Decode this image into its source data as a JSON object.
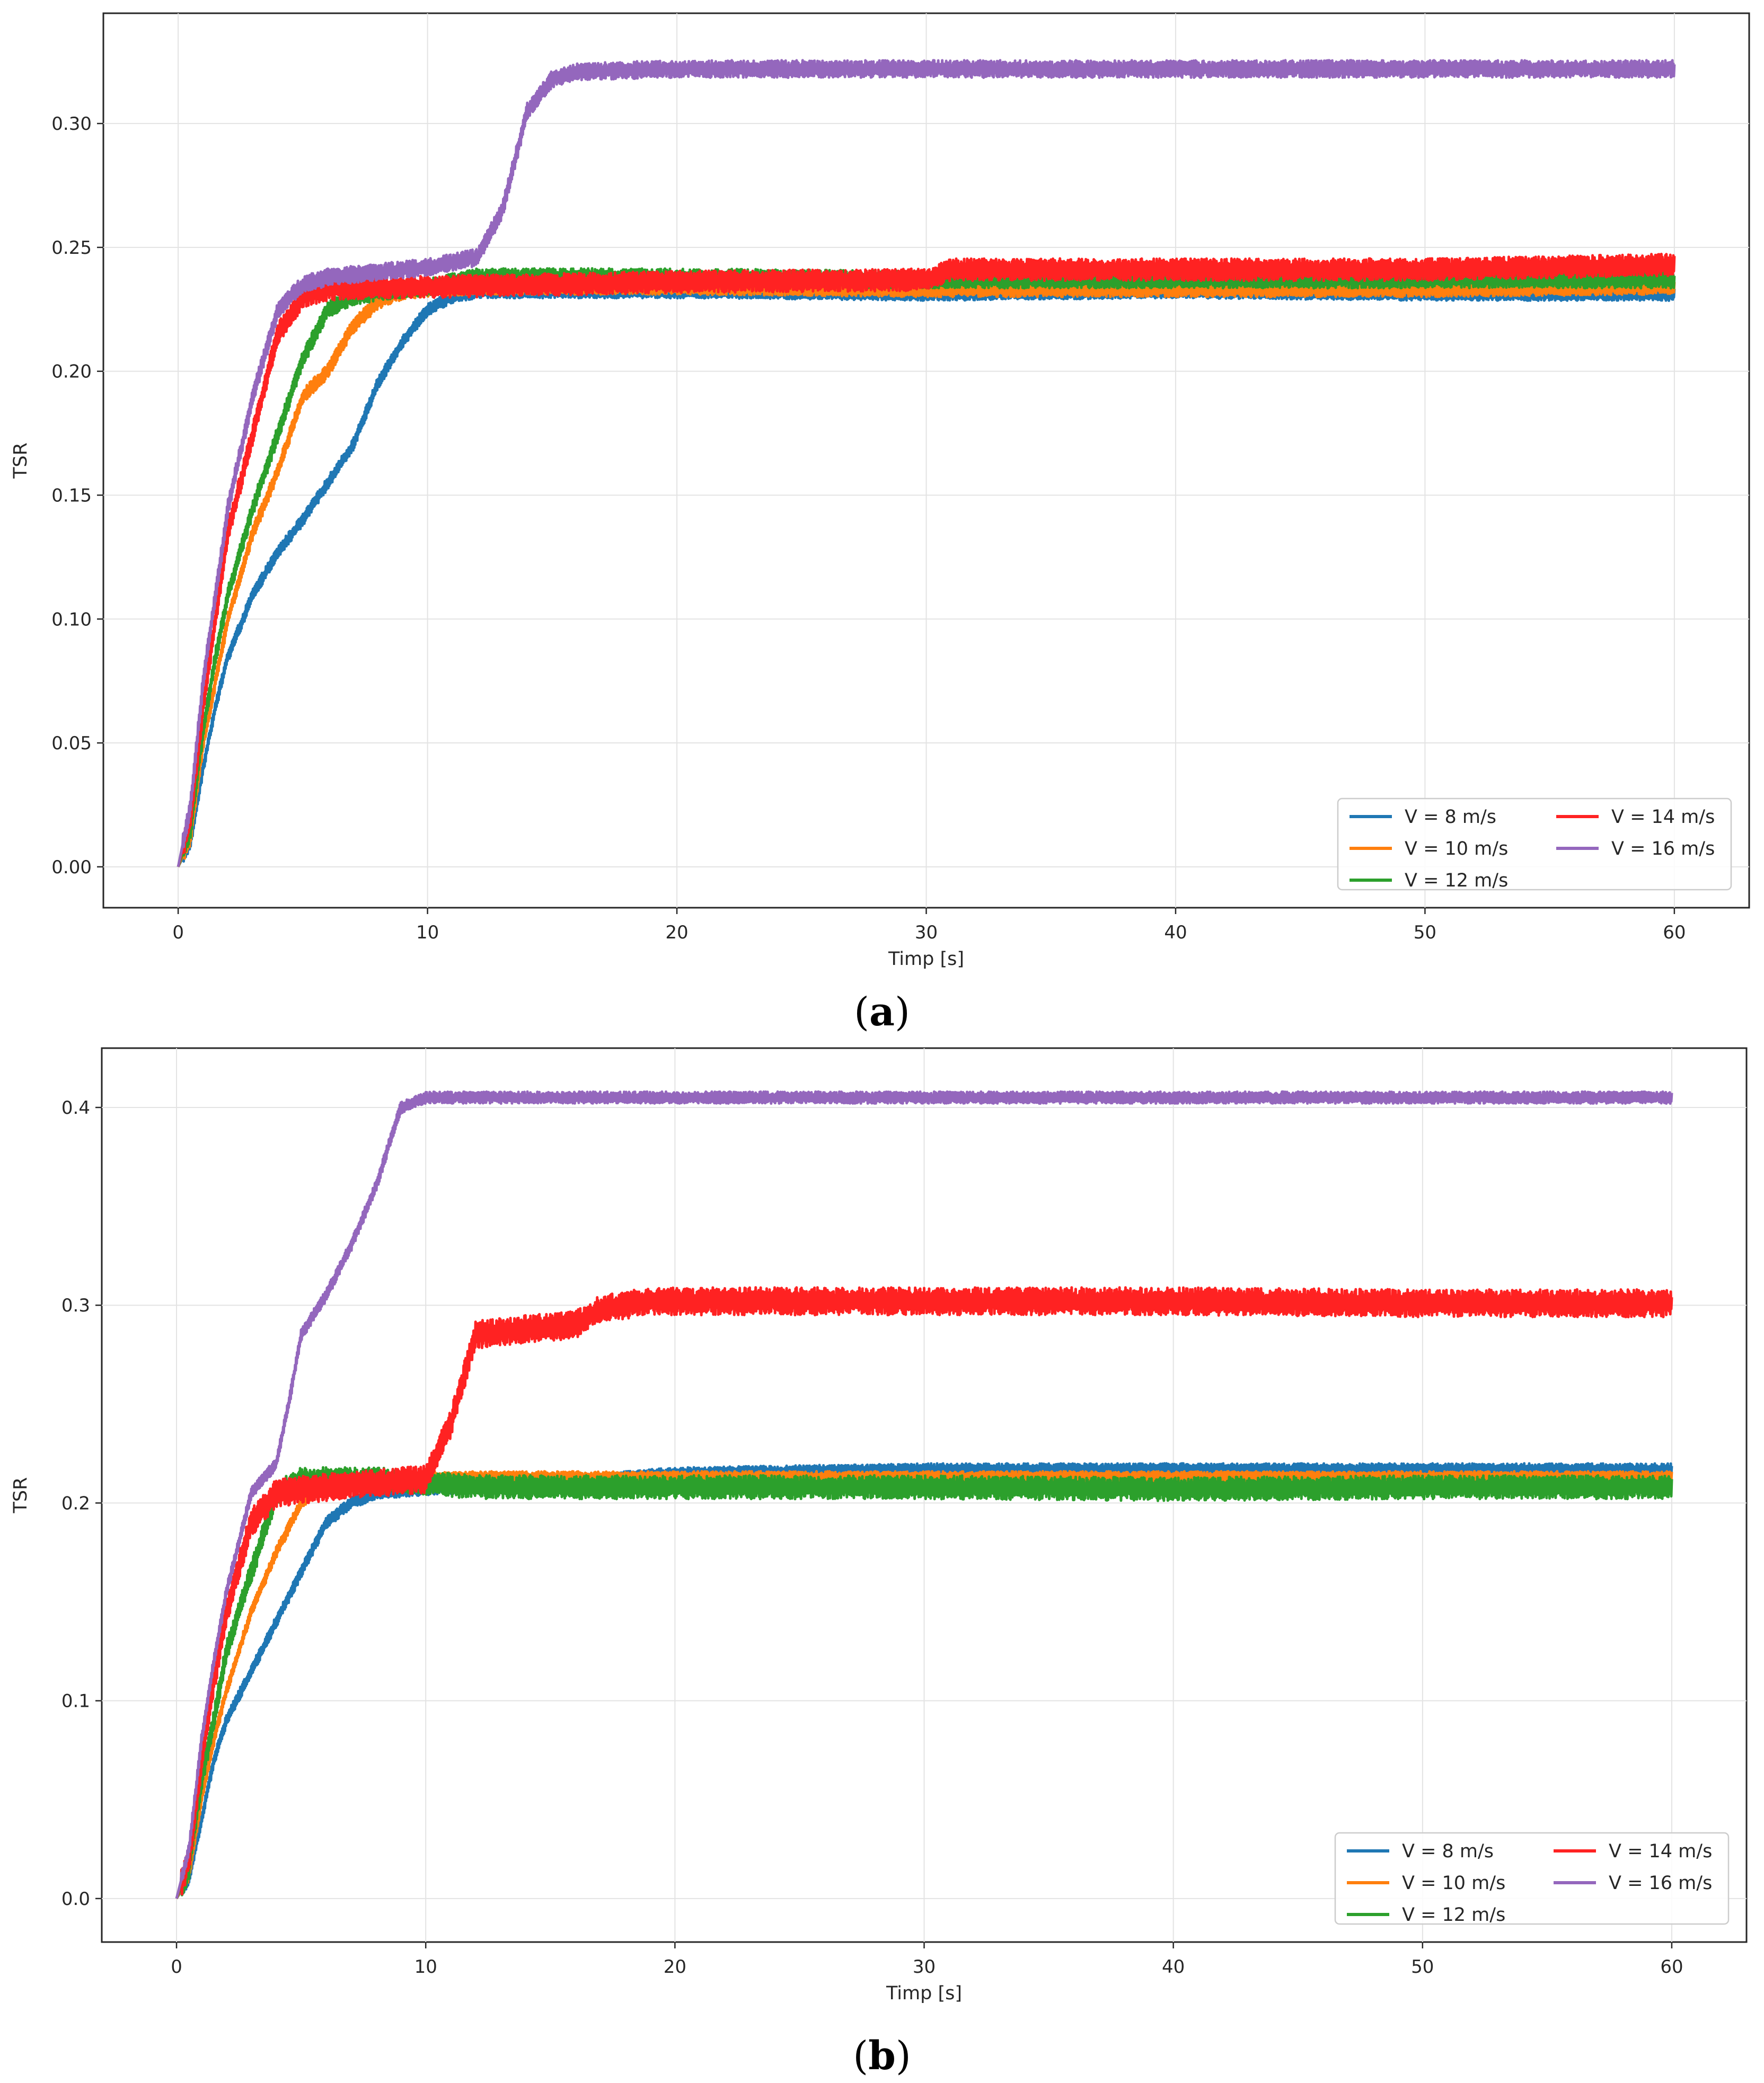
{
  "chart_data": [
    {
      "id": "a",
      "type": "line",
      "caption": {
        "open": "(",
        "letter": "a",
        "close": ")"
      },
      "xlabel": "Timp [s]",
      "ylabel": "TSR",
      "xlim": [
        -3,
        63
      ],
      "ylim": [
        -0.0165,
        0.3445
      ],
      "xticks": [
        0,
        10,
        20,
        30,
        40,
        50,
        60
      ],
      "xtick_labels": [
        "0",
        "10",
        "20",
        "30",
        "40",
        "50",
        "60"
      ],
      "yticks": [
        0.0,
        0.05,
        0.1,
        0.15,
        0.2,
        0.25,
        0.3
      ],
      "ytick_labels": [
        "0.00",
        "0.05",
        "0.10",
        "0.15",
        "0.20",
        "0.25",
        "0.30"
      ],
      "grid": true,
      "legend_position": "lower-right",
      "legend_columns": 2,
      "series": [
        {
          "name": "V = 8 m/s",
          "label": "V = 8 m/s",
          "color": "#1f77b4",
          "noise": 0.0025,
          "points": [
            [
              0,
              0
            ],
            [
              0.5,
              0.01
            ],
            [
              1,
              0.04
            ],
            [
              1.5,
              0.065
            ],
            [
              2,
              0.085
            ],
            [
              3,
              0.11
            ],
            [
              4,
              0.127
            ],
            [
              5,
              0.14
            ],
            [
              6,
              0.155
            ],
            [
              7,
              0.17
            ],
            [
              8,
              0.195
            ],
            [
              9,
              0.212
            ],
            [
              10,
              0.225
            ],
            [
              11,
              0.23
            ],
            [
              12,
              0.232
            ],
            [
              20,
              0.232
            ],
            [
              30,
              0.231
            ],
            [
              40,
              0.232
            ],
            [
              50,
              0.231
            ],
            [
              60,
              0.231
            ]
          ]
        },
        {
          "name": "V = 10 m/s",
          "label": "V = 10 m/s",
          "color": "#ff7f0e",
          "noise": 0.003,
          "points": [
            [
              0,
              0
            ],
            [
              0.5,
              0.012
            ],
            [
              1,
              0.05
            ],
            [
              1.5,
              0.075
            ],
            [
              2,
              0.1
            ],
            [
              3,
              0.135
            ],
            [
              4,
              0.16
            ],
            [
              5,
              0.19
            ],
            [
              6,
              0.2
            ],
            [
              7,
              0.218
            ],
            [
              8,
              0.228
            ],
            [
              9,
              0.232
            ],
            [
              10,
              0.233
            ],
            [
              12,
              0.234
            ],
            [
              20,
              0.234
            ],
            [
              30,
              0.233
            ],
            [
              40,
              0.233
            ],
            [
              50,
              0.233
            ],
            [
              60,
              0.234
            ]
          ]
        },
        {
          "name": "V = 12 m/s",
          "label": "V = 12 m/s",
          "color": "#2ca02c",
          "noise": 0.0035,
          "points": [
            [
              0,
              0
            ],
            [
              0.5,
              0.015
            ],
            [
              1,
              0.055
            ],
            [
              1.5,
              0.085
            ],
            [
              2,
              0.11
            ],
            [
              3,
              0.145
            ],
            [
              4,
              0.175
            ],
            [
              5,
              0.205
            ],
            [
              6,
              0.225
            ],
            [
              7,
              0.23
            ],
            [
              8,
              0.232
            ],
            [
              10,
              0.234
            ],
            [
              12,
              0.238
            ],
            [
              20,
              0.238
            ],
            [
              30,
              0.237
            ],
            [
              40,
              0.237
            ],
            [
              50,
              0.237
            ],
            [
              60,
              0.237
            ]
          ]
        },
        {
          "name": "V = 14 m/s",
          "label": "V = 14 m/s",
          "color": "#ff2222",
          "noise": 0.0045,
          "points": [
            [
              0,
              0
            ],
            [
              0.5,
              0.02
            ],
            [
              1,
              0.065
            ],
            [
              1.5,
              0.1
            ],
            [
              2,
              0.135
            ],
            [
              3,
              0.175
            ],
            [
              4,
              0.215
            ],
            [
              5,
              0.23
            ],
            [
              6,
              0.233
            ],
            [
              8,
              0.234
            ],
            [
              10,
              0.234
            ],
            [
              15,
              0.235
            ],
            [
              20,
              0.236
            ],
            [
              30,
              0.237
            ],
            [
              31,
              0.241
            ],
            [
              40,
              0.241
            ],
            [
              50,
              0.241
            ],
            [
              60,
              0.243
            ]
          ]
        },
        {
          "name": "V = 16 m/s",
          "label": "V = 16 m/s",
          "color": "#9467bd",
          "noise": 0.0035,
          "points": [
            [
              0,
              0
            ],
            [
              0.5,
              0.025
            ],
            [
              1,
              0.075
            ],
            [
              1.5,
              0.11
            ],
            [
              2,
              0.145
            ],
            [
              3,
              0.19
            ],
            [
              4,
              0.225
            ],
            [
              5,
              0.235
            ],
            [
              6,
              0.238
            ],
            [
              8,
              0.24
            ],
            [
              10,
              0.242
            ],
            [
              12,
              0.246
            ],
            [
              13,
              0.265
            ],
            [
              14,
              0.305
            ],
            [
              15,
              0.318
            ],
            [
              16,
              0.321
            ],
            [
              20,
              0.322
            ],
            [
              30,
              0.322
            ],
            [
              40,
              0.322
            ],
            [
              50,
              0.322
            ],
            [
              60,
              0.322
            ]
          ]
        }
      ]
    },
    {
      "id": "b",
      "type": "line",
      "caption": {
        "open": "(",
        "letter": "b",
        "close": ")"
      },
      "xlabel": "Timp [s]",
      "ylabel": "TSR",
      "xlim": [
        -3,
        63
      ],
      "ylim": [
        -0.022,
        0.43
      ],
      "xticks": [
        0,
        10,
        20,
        30,
        40,
        50,
        60
      ],
      "xtick_labels": [
        "0",
        "10",
        "20",
        "30",
        "40",
        "50",
        "60"
      ],
      "yticks": [
        0.0,
        0.1,
        0.2,
        0.3,
        0.4
      ],
      "ytick_labels": [
        "0.0",
        "0.1",
        "0.2",
        "0.3",
        "0.4"
      ],
      "grid": true,
      "legend_position": "lower-right",
      "legend_columns": 2,
      "series": [
        {
          "name": "V = 8 m/s",
          "label": "V = 8 m/s",
          "color": "#1f77b4",
          "noise": 0.003,
          "points": [
            [
              0,
              0
            ],
            [
              0.5,
              0.01
            ],
            [
              1,
              0.04
            ],
            [
              1.5,
              0.07
            ],
            [
              2,
              0.09
            ],
            [
              3,
              0.115
            ],
            [
              4,
              0.14
            ],
            [
              5,
              0.165
            ],
            [
              6,
              0.19
            ],
            [
              7,
              0.2
            ],
            [
              8,
              0.205
            ],
            [
              10,
              0.207
            ],
            [
              15,
              0.21
            ],
            [
              20,
              0.215
            ],
            [
              30,
              0.217
            ],
            [
              40,
              0.217
            ],
            [
              50,
              0.217
            ],
            [
              60,
              0.217
            ]
          ]
        },
        {
          "name": "V = 10 m/s",
          "label": "V = 10 m/s",
          "color": "#ff7f0e",
          "noise": 0.003,
          "points": [
            [
              0,
              0
            ],
            [
              0.5,
              0.012
            ],
            [
              1,
              0.05
            ],
            [
              1.5,
              0.08
            ],
            [
              2,
              0.105
            ],
            [
              3,
              0.145
            ],
            [
              4,
              0.175
            ],
            [
              5,
              0.2
            ],
            [
              6,
              0.21
            ],
            [
              8,
              0.213
            ],
            [
              10,
              0.213
            ],
            [
              20,
              0.213
            ],
            [
              30,
              0.213
            ],
            [
              40,
              0.213
            ],
            [
              50,
              0.213
            ],
            [
              60,
              0.213
            ]
          ]
        },
        {
          "name": "V = 12 m/s",
          "label": "V = 12 m/s",
          "color": "#2ca02c",
          "noise": 0.006,
          "points": [
            [
              0,
              0
            ],
            [
              0.5,
              0.015
            ],
            [
              1,
              0.06
            ],
            [
              1.5,
              0.09
            ],
            [
              2,
              0.125
            ],
            [
              3,
              0.165
            ],
            [
              4,
              0.205
            ],
            [
              5,
              0.212
            ],
            [
              8,
              0.212
            ],
            [
              10,
              0.21
            ],
            [
              12,
              0.208
            ],
            [
              20,
              0.208
            ],
            [
              30,
              0.208
            ],
            [
              40,
              0.207
            ],
            [
              50,
              0.208
            ],
            [
              60,
              0.208
            ]
          ]
        },
        {
          "name": "V = 14 m/s",
          "label": "V = 14 m/s",
          "color": "#ff2222",
          "noise": 0.007,
          "points": [
            [
              0,
              0
            ],
            [
              0.5,
              0.02
            ],
            [
              1,
              0.07
            ],
            [
              1.5,
              0.11
            ],
            [
              2,
              0.145
            ],
            [
              3,
              0.19
            ],
            [
              4,
              0.205
            ],
            [
              6,
              0.208
            ],
            [
              8,
              0.21
            ],
            [
              10,
              0.212
            ],
            [
              11,
              0.24
            ],
            [
              12,
              0.285
            ],
            [
              14,
              0.288
            ],
            [
              16,
              0.29
            ],
            [
              17,
              0.298
            ],
            [
              19,
              0.302
            ],
            [
              30,
              0.302
            ],
            [
              40,
              0.302
            ],
            [
              50,
              0.301
            ],
            [
              60,
              0.301
            ]
          ]
        },
        {
          "name": "V = 16 m/s",
          "label": "V = 16 m/s",
          "color": "#9467bd",
          "noise": 0.003,
          "points": [
            [
              0,
              0
            ],
            [
              0.5,
              0.025
            ],
            [
              1,
              0.08
            ],
            [
              1.5,
              0.12
            ],
            [
              2,
              0.155
            ],
            [
              3,
              0.205
            ],
            [
              4,
              0.22
            ],
            [
              4.5,
              0.25
            ],
            [
              5,
              0.285
            ],
            [
              6,
              0.305
            ],
            [
              7,
              0.33
            ],
            [
              8,
              0.36
            ],
            [
              9,
              0.4
            ],
            [
              10,
              0.405
            ],
            [
              20,
              0.405
            ],
            [
              30,
              0.405
            ],
            [
              40,
              0.405
            ],
            [
              50,
              0.405
            ],
            [
              60,
              0.405
            ]
          ]
        }
      ]
    }
  ]
}
